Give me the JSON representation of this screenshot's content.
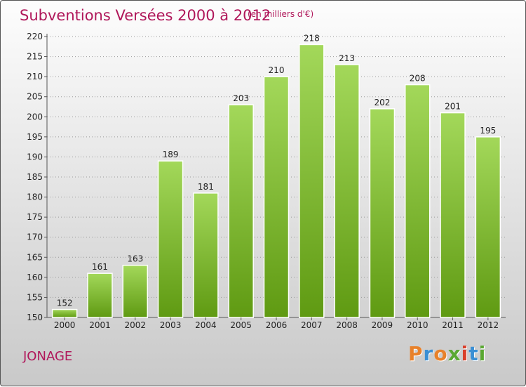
{
  "header": {
    "title": "Subventions Versées 2000 à 2012",
    "subtitle": "(en milliers d'€)"
  },
  "footer": {
    "location": "JONAGE",
    "brand": "Proxiti",
    "brand_colors": [
      "#e8812a",
      "#3b8fd4",
      "#e8812a",
      "#5aa832",
      "#d93f2a",
      "#3b8fd4",
      "#5aa832"
    ]
  },
  "colors": {
    "accent": "#b0175a",
    "bar_top": "#a3d85a",
    "bar_bottom": "#5f9a12",
    "grid": "#9a9a9a"
  },
  "chart_data": {
    "type": "bar",
    "title": "Subventions Versées 2000 à 2012",
    "subtitle": "(en milliers d'€)",
    "categories": [
      "2000",
      "2001",
      "2002",
      "2003",
      "2004",
      "2005",
      "2006",
      "2007",
      "2008",
      "2009",
      "2010",
      "2011",
      "2012"
    ],
    "values": [
      152,
      161,
      163,
      189,
      181,
      203,
      210,
      218,
      213,
      202,
      208,
      201,
      195
    ],
    "ylim": [
      150,
      220
    ],
    "yticks": [
      150,
      155,
      160,
      165,
      170,
      175,
      180,
      185,
      190,
      195,
      200,
      205,
      210,
      215,
      220
    ],
    "grid": true,
    "legend": "none"
  }
}
